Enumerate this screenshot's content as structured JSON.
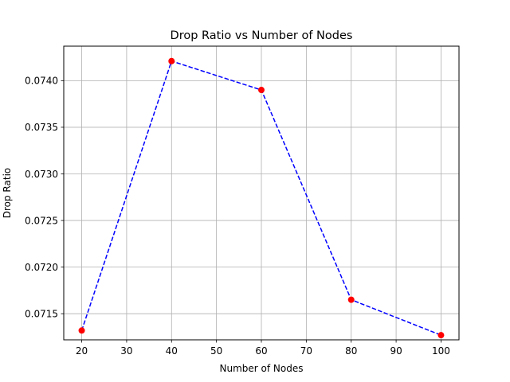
{
  "chart_data": {
    "type": "line",
    "title": "Drop Ratio vs Number of Nodes",
    "xlabel": "Number of Nodes",
    "ylabel": "Drop Ratio",
    "xlim": [
      16,
      104
    ],
    "ylim": [
      0.07122,
      0.07437
    ],
    "xticks": [
      20,
      30,
      40,
      50,
      60,
      70,
      80,
      90,
      100
    ],
    "yticks": [
      0.0715,
      0.072,
      0.0725,
      0.073,
      0.0735,
      0.074
    ],
    "ytick_labels": [
      "0.0715",
      "0.0720",
      "0.0725",
      "0.0730",
      "0.0735",
      "0.0740"
    ],
    "grid": true,
    "series": [
      {
        "x": [
          20,
          40,
          60,
          80,
          100
        ],
        "y": [
          0.07132,
          0.07421,
          0.0739,
          0.07165,
          0.07127
        ],
        "line_color": "#0000ff",
        "line_style": "dashed",
        "marker_color": "#ff0000",
        "marker": "circle"
      }
    ]
  }
}
